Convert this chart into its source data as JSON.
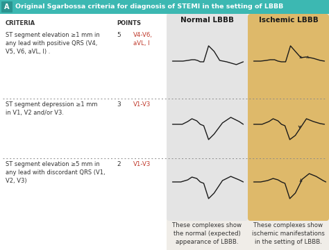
{
  "title": "Original Sgarbossa criteria for diagnosis of STEMI in the setting of LBBB",
  "title_label": "A",
  "header_bg": "#3cb8b2",
  "header_text_color": "white",
  "criteria_col_header": "CRITERIA",
  "points_col_header": "POINTS",
  "normal_col_header": "Normal LBBB",
  "ischemic_col_header": "Ischemic LBBB",
  "normal_bg": "#e4e4e4",
  "ischemic_bg": "#deb96a",
  "body_bg": "#f0ede8",
  "criteria": [
    {
      "text": "ST segment elevation ≥1 mm in\nany lead with positive QRS (V4,\nV5, V6, aVL, I) .",
      "points": "5",
      "leads": "V4-V6,\naVL, I",
      "leads_color": "#c0392b"
    },
    {
      "text": "ST segment depression ≥1 mm\nin V1, V2 and/or V3.",
      "points": "3",
      "leads": "V1-V3",
      "leads_color": "#c0392b"
    },
    {
      "text": "ST segment elevation ≥5 mm in\nany lead with discordant QRS (V1,\nV2, V3)",
      "points": "2",
      "leads": "V1-V3",
      "leads_color": "#c0392b"
    }
  ],
  "footer_normal": "These complexes show\nthe normal (expected)\nappearance of LBBB.",
  "footer_ischemic": "These complexes show\nischemic manifestations\nin the setting of LBBB.",
  "ecg_color": "#1a1a1a",
  "arrow_color": "#2a2a2a"
}
